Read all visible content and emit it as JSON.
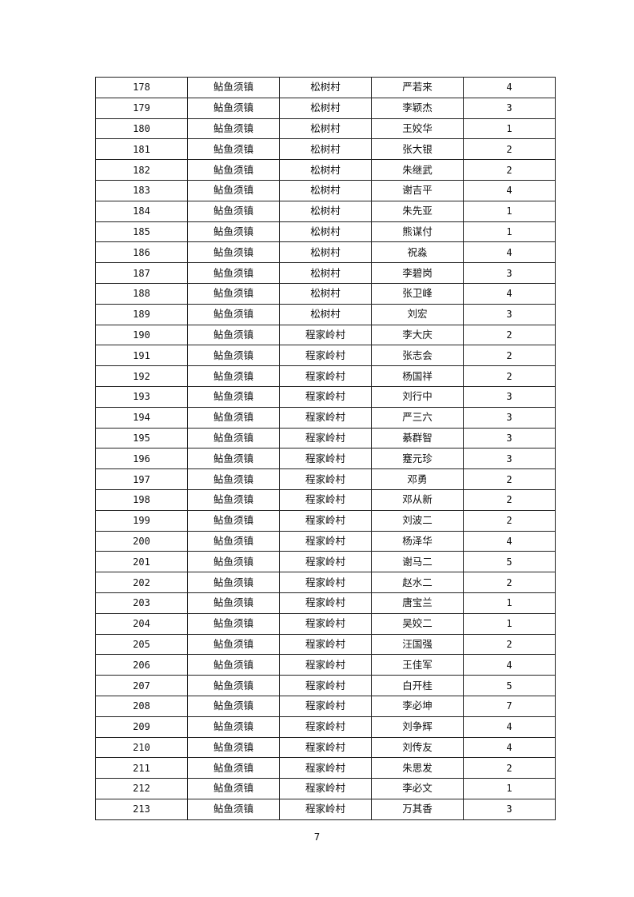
{
  "table": {
    "rows": [
      [
        "178",
        "鲇鱼须镇",
        "松树村",
        "严若来",
        "4"
      ],
      [
        "179",
        "鲇鱼须镇",
        "松树村",
        "李颖杰",
        "3"
      ],
      [
        "180",
        "鲇鱼须镇",
        "松树村",
        "王姣华",
        "1"
      ],
      [
        "181",
        "鲇鱼须镇",
        "松树村",
        "张大银",
        "2"
      ],
      [
        "182",
        "鲇鱼须镇",
        "松树村",
        "朱继武",
        "2"
      ],
      [
        "183",
        "鲇鱼须镇",
        "松树村",
        "谢吉平",
        "4"
      ],
      [
        "184",
        "鲇鱼须镇",
        "松树村",
        "朱先亚",
        "1"
      ],
      [
        "185",
        "鲇鱼须镇",
        "松树村",
        "熊谋付",
        "1"
      ],
      [
        "186",
        "鲇鱼须镇",
        "松树村",
        "祝淼",
        "4"
      ],
      [
        "187",
        "鲇鱼须镇",
        "松树村",
        "李碧岗",
        "3"
      ],
      [
        "188",
        "鲇鱼须镇",
        "松树村",
        "张卫峰",
        "4"
      ],
      [
        "189",
        "鲇鱼须镇",
        "松树村",
        "刘宏",
        "3"
      ],
      [
        "190",
        "鲇鱼须镇",
        "程家岭村",
        "李大庆",
        "2"
      ],
      [
        "191",
        "鲇鱼须镇",
        "程家岭村",
        "张志会",
        "2"
      ],
      [
        "192",
        "鲇鱼须镇",
        "程家岭村",
        "杨国祥",
        "2"
      ],
      [
        "193",
        "鲇鱼须镇",
        "程家岭村",
        "刘行中",
        "3"
      ],
      [
        "194",
        "鲇鱼须镇",
        "程家岭村",
        "严三六",
        "3"
      ],
      [
        "195",
        "鲇鱼须镇",
        "程家岭村",
        "綦群智",
        "3"
      ],
      [
        "196",
        "鲇鱼须镇",
        "程家岭村",
        "蹇元珍",
        "3"
      ],
      [
        "197",
        "鲇鱼须镇",
        "程家岭村",
        "邓勇",
        "2"
      ],
      [
        "198",
        "鲇鱼须镇",
        "程家岭村",
        "邓从新",
        "2"
      ],
      [
        "199",
        "鲇鱼须镇",
        "程家岭村",
        "刘波二",
        "2"
      ],
      [
        "200",
        "鲇鱼须镇",
        "程家岭村",
        "杨泽华",
        "4"
      ],
      [
        "201",
        "鲇鱼须镇",
        "程家岭村",
        "谢马二",
        "5"
      ],
      [
        "202",
        "鲇鱼须镇",
        "程家岭村",
        "赵水二",
        "2"
      ],
      [
        "203",
        "鲇鱼须镇",
        "程家岭村",
        "唐宝兰",
        "1"
      ],
      [
        "204",
        "鲇鱼须镇",
        "程家岭村",
        "吴姣二",
        "1"
      ],
      [
        "205",
        "鲇鱼须镇",
        "程家岭村",
        "汪国强",
        "2"
      ],
      [
        "206",
        "鲇鱼须镇",
        "程家岭村",
        "王佳军",
        "4"
      ],
      [
        "207",
        "鲇鱼须镇",
        "程家岭村",
        "白开桂",
        "5"
      ],
      [
        "208",
        "鲇鱼须镇",
        "程家岭村",
        "李必坤",
        "7"
      ],
      [
        "209",
        "鲇鱼须镇",
        "程家岭村",
        "刘争辉",
        "4"
      ],
      [
        "210",
        "鲇鱼须镇",
        "程家岭村",
        "刘传友",
        "4"
      ],
      [
        "211",
        "鲇鱼须镇",
        "程家岭村",
        "朱思发",
        "2"
      ],
      [
        "212",
        "鲇鱼须镇",
        "程家岭村",
        "李必文",
        "1"
      ],
      [
        "213",
        "鲇鱼须镇",
        "程家岭村",
        "万其香",
        "3"
      ]
    ]
  },
  "footer": {
    "page_number": "7"
  }
}
